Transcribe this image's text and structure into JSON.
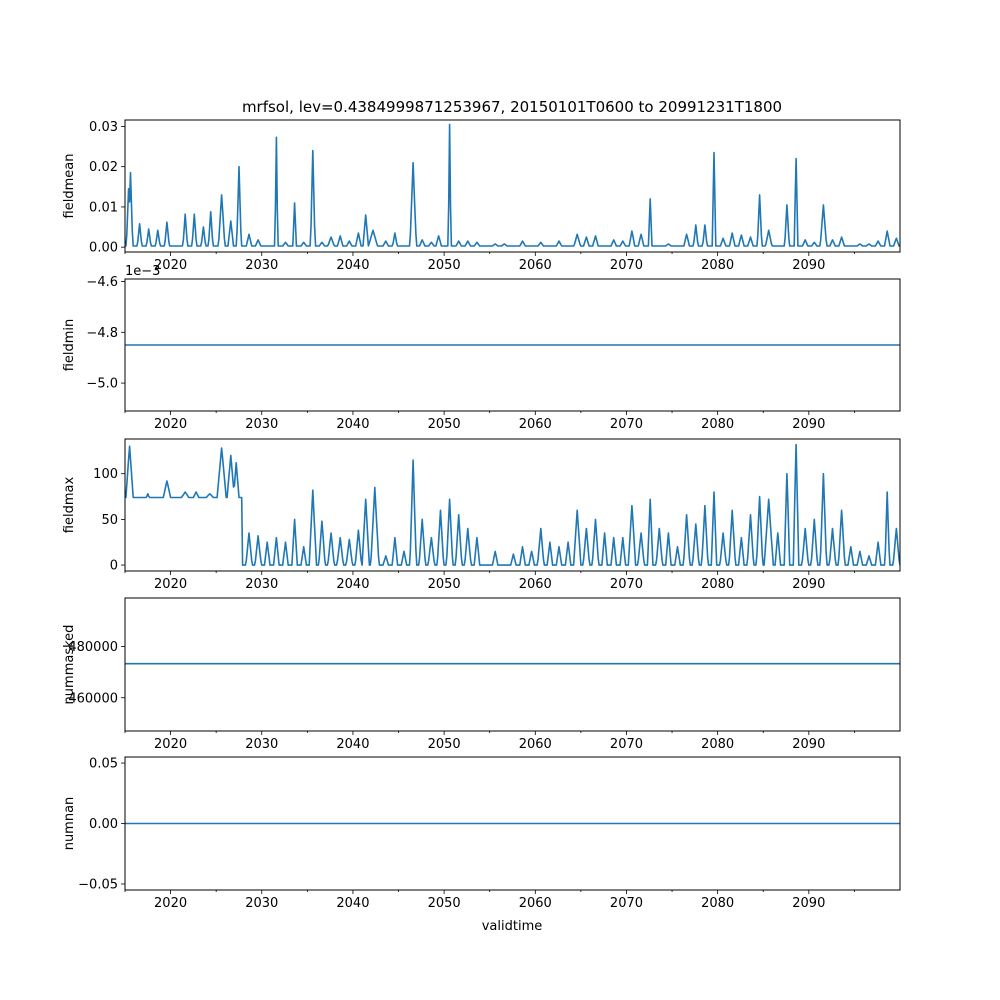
{
  "figure": {
    "title": "mrfsol, lev=0.4384999871253967, 20150101T0600 to 20991231T1800",
    "xlabel": "validtime",
    "line_color": "#1f77b4"
  },
  "chart_data": [
    {
      "type": "line",
      "name": "fieldmean",
      "ylabel": "fieldmean",
      "xlim": [
        2015.0,
        2100.0
      ],
      "ylim": [
        -0.0012,
        0.0316
      ],
      "xticks": [
        2020,
        2030,
        2040,
        2050,
        2060,
        2070,
        2080,
        2090
      ],
      "yticks": [
        0.0,
        0.01,
        0.02,
        0.03
      ],
      "ytick_labels": [
        "0.00",
        "0.01",
        "0.02",
        "0.03"
      ],
      "offset_text": "",
      "baseline": 0.0003,
      "peaks": [
        [
          2015.4,
          0.0145,
          0.25
        ],
        [
          2015.6,
          0.0185,
          0.25
        ],
        [
          2016.6,
          0.0058,
          0.25
        ],
        [
          2017.6,
          0.0045,
          0.25
        ],
        [
          2018.6,
          0.0042,
          0.25
        ],
        [
          2019.6,
          0.0062,
          0.25
        ],
        [
          2021.6,
          0.0082,
          0.25
        ],
        [
          2022.6,
          0.0082,
          0.25
        ],
        [
          2023.6,
          0.005,
          0.25
        ],
        [
          2024.4,
          0.0088,
          0.25
        ],
        [
          2025.6,
          0.013,
          0.35
        ],
        [
          2026.6,
          0.0065,
          0.3
        ],
        [
          2027.5,
          0.02,
          0.25
        ],
        [
          2028.6,
          0.0032,
          0.3
        ],
        [
          2029.6,
          0.0018,
          0.3
        ],
        [
          2031.6,
          0.0273,
          0.15
        ],
        [
          2032.6,
          0.0012,
          0.3
        ],
        [
          2033.6,
          0.011,
          0.2
        ],
        [
          2034.6,
          0.0012,
          0.3
        ],
        [
          2035.6,
          0.024,
          0.25
        ],
        [
          2036.6,
          0.0012,
          0.3
        ],
        [
          2037.6,
          0.0025,
          0.35
        ],
        [
          2038.6,
          0.0028,
          0.3
        ],
        [
          2039.6,
          0.0015,
          0.3
        ],
        [
          2040.6,
          0.0035,
          0.3
        ],
        [
          2041.4,
          0.008,
          0.3
        ],
        [
          2042.2,
          0.0042,
          0.5
        ],
        [
          2043.6,
          0.0015,
          0.3
        ],
        [
          2044.6,
          0.0035,
          0.25
        ],
        [
          2046.6,
          0.021,
          0.35
        ],
        [
          2047.6,
          0.0018,
          0.3
        ],
        [
          2048.6,
          0.0012,
          0.3
        ],
        [
          2049.4,
          0.0028,
          0.3
        ],
        [
          2050.6,
          0.0305,
          0.15
        ],
        [
          2051.6,
          0.0015,
          0.3
        ],
        [
          2052.6,
          0.0015,
          0.3
        ],
        [
          2053.6,
          0.0012,
          0.3
        ],
        [
          2055.6,
          0.0008,
          0.3
        ],
        [
          2056.6,
          0.0008,
          0.3
        ],
        [
          2058.6,
          0.0015,
          0.3
        ],
        [
          2060.6,
          0.0012,
          0.3
        ],
        [
          2062.6,
          0.0015,
          0.3
        ],
        [
          2064.6,
          0.0032,
          0.35
        ],
        [
          2065.6,
          0.0025,
          0.3
        ],
        [
          2066.6,
          0.0028,
          0.3
        ],
        [
          2068.6,
          0.0018,
          0.3
        ],
        [
          2069.6,
          0.0015,
          0.3
        ],
        [
          2070.6,
          0.004,
          0.3
        ],
        [
          2071.6,
          0.0032,
          0.3
        ],
        [
          2072.6,
          0.012,
          0.2
        ],
        [
          2074.6,
          0.0008,
          0.3
        ],
        [
          2076.6,
          0.0032,
          0.3
        ],
        [
          2077.6,
          0.0055,
          0.25
        ],
        [
          2078.6,
          0.0055,
          0.25
        ],
        [
          2079.6,
          0.0235,
          0.2
        ],
        [
          2080.6,
          0.0022,
          0.3
        ],
        [
          2081.6,
          0.0035,
          0.3
        ],
        [
          2082.6,
          0.003,
          0.3
        ],
        [
          2083.6,
          0.0025,
          0.3
        ],
        [
          2084.6,
          0.013,
          0.25
        ],
        [
          2085.6,
          0.0042,
          0.35
        ],
        [
          2087.6,
          0.0105,
          0.25
        ],
        [
          2088.6,
          0.022,
          0.2
        ],
        [
          2089.6,
          0.0018,
          0.3
        ],
        [
          2090.6,
          0.0012,
          0.3
        ],
        [
          2091.6,
          0.0105,
          0.35
        ],
        [
          2092.6,
          0.0018,
          0.3
        ],
        [
          2093.6,
          0.0025,
          0.3
        ],
        [
          2095.6,
          0.0008,
          0.3
        ],
        [
          2096.6,
          0.0008,
          0.3
        ],
        [
          2097.6,
          0.0015,
          0.3
        ],
        [
          2098.6,
          0.004,
          0.3
        ],
        [
          2099.6,
          0.0022,
          0.3
        ]
      ]
    },
    {
      "type": "line",
      "name": "fieldmin",
      "ylabel": "fieldmin",
      "xlim": [
        2015.0,
        2100.0
      ],
      "ylim": [
        -0.00511,
        -0.00459
      ],
      "xticks": [
        2020,
        2030,
        2040,
        2050,
        2060,
        2070,
        2080,
        2090
      ],
      "yticks": [
        -0.0046,
        -0.0048,
        -0.005
      ],
      "ytick_labels": [
        "−4.6",
        "−4.8",
        "−5.0"
      ],
      "offset_text": "1e−3",
      "constant": -0.00485
    },
    {
      "type": "line",
      "name": "fieldmax",
      "ylabel": "fieldmax",
      "xlim": [
        2015.0,
        2100.0
      ],
      "ylim": [
        -6.5,
        138
      ],
      "xticks": [
        2020,
        2030,
        2040,
        2050,
        2060,
        2070,
        2080,
        2090
      ],
      "yticks": [
        0,
        50,
        100
      ],
      "ytick_labels": [
        "0",
        "50",
        "100"
      ],
      "offset_text": "",
      "segments": [
        [
          2015.0,
          2027.9,
          74
        ],
        [
          2027.9,
          2100.0,
          0
        ]
      ],
      "peaks": [
        [
          2015.5,
          130,
          0.4
        ],
        [
          2017.5,
          78,
          0.15
        ],
        [
          2019.6,
          92,
          0.4
        ],
        [
          2021.6,
          80,
          0.4
        ],
        [
          2022.8,
          80,
          0.3
        ],
        [
          2024.3,
          78,
          0.4
        ],
        [
          2025.6,
          128,
          0.5
        ],
        [
          2026.6,
          120,
          0.4
        ],
        [
          2027.2,
          112,
          0.3
        ],
        [
          2028.6,
          35,
          0.35
        ],
        [
          2029.6,
          32,
          0.35
        ],
        [
          2030.6,
          25,
          0.3
        ],
        [
          2031.6,
          30,
          0.3
        ],
        [
          2032.6,
          25,
          0.3
        ],
        [
          2033.6,
          50,
          0.3
        ],
        [
          2034.6,
          20,
          0.3
        ],
        [
          2035.6,
          82,
          0.4
        ],
        [
          2036.6,
          48,
          0.35
        ],
        [
          2037.6,
          35,
          0.35
        ],
        [
          2038.6,
          30,
          0.35
        ],
        [
          2039.6,
          28,
          0.35
        ],
        [
          2040.6,
          38,
          0.35
        ],
        [
          2041.4,
          72,
          0.4
        ],
        [
          2042.4,
          85,
          0.45
        ],
        [
          2043.6,
          10,
          0.3
        ],
        [
          2044.6,
          30,
          0.3
        ],
        [
          2045.6,
          15,
          0.3
        ],
        [
          2046.6,
          115,
          0.35
        ],
        [
          2047.6,
          50,
          0.35
        ],
        [
          2048.6,
          30,
          0.35
        ],
        [
          2049.6,
          60,
          0.35
        ],
        [
          2050.6,
          72,
          0.35
        ],
        [
          2051.6,
          55,
          0.35
        ],
        [
          2052.6,
          40,
          0.35
        ],
        [
          2053.6,
          30,
          0.3
        ],
        [
          2055.6,
          15,
          0.3
        ],
        [
          2057.6,
          12,
          0.3
        ],
        [
          2058.6,
          20,
          0.3
        ],
        [
          2059.6,
          15,
          0.3
        ],
        [
          2060.6,
          40,
          0.35
        ],
        [
          2061.6,
          25,
          0.3
        ],
        [
          2062.6,
          20,
          0.3
        ],
        [
          2063.6,
          25,
          0.3
        ],
        [
          2064.6,
          60,
          0.4
        ],
        [
          2065.6,
          40,
          0.35
        ],
        [
          2066.6,
          50,
          0.35
        ],
        [
          2067.6,
          35,
          0.3
        ],
        [
          2068.6,
          30,
          0.3
        ],
        [
          2069.6,
          30,
          0.3
        ],
        [
          2070.6,
          65,
          0.4
        ],
        [
          2071.6,
          35,
          0.35
        ],
        [
          2072.6,
          72,
          0.3
        ],
        [
          2073.6,
          40,
          0.35
        ],
        [
          2074.6,
          35,
          0.3
        ],
        [
          2075.6,
          20,
          0.3
        ],
        [
          2076.6,
          55,
          0.35
        ],
        [
          2077.6,
          45,
          0.35
        ],
        [
          2078.6,
          65,
          0.35
        ],
        [
          2079.6,
          80,
          0.3
        ],
        [
          2080.6,
          35,
          0.35
        ],
        [
          2081.6,
          60,
          0.35
        ],
        [
          2082.6,
          30,
          0.3
        ],
        [
          2083.6,
          55,
          0.35
        ],
        [
          2084.6,
          75,
          0.35
        ],
        [
          2085.6,
          72,
          0.5
        ],
        [
          2086.6,
          35,
          0.3
        ],
        [
          2087.6,
          100,
          0.3
        ],
        [
          2088.6,
          132,
          0.3
        ],
        [
          2089.6,
          40,
          0.35
        ],
        [
          2090.6,
          50,
          0.35
        ],
        [
          2091.6,
          100,
          0.35
        ],
        [
          2092.6,
          40,
          0.35
        ],
        [
          2093.6,
          60,
          0.35
        ],
        [
          2094.6,
          20,
          0.3
        ],
        [
          2095.6,
          15,
          0.3
        ],
        [
          2096.6,
          10,
          0.3
        ],
        [
          2097.6,
          25,
          0.3
        ],
        [
          2098.6,
          80,
          0.25
        ],
        [
          2099.6,
          40,
          0.35
        ]
      ]
    },
    {
      "type": "line",
      "name": "nummasked",
      "ylabel": "nummasked",
      "xlim": [
        2015.0,
        2100.0
      ],
      "ylim": [
        447000,
        499000
      ],
      "xticks": [
        2020,
        2030,
        2040,
        2050,
        2060,
        2070,
        2080,
        2090
      ],
      "yticks": [
        460000,
        480000
      ],
      "ytick_labels": [
        "460000",
        "480000"
      ],
      "offset_text": "",
      "constant": 473300
    },
    {
      "type": "line",
      "name": "numnan",
      "ylabel": "numnan",
      "xlabel": "validtime",
      "xlim": [
        2015.0,
        2100.0
      ],
      "ylim": [
        -0.055,
        0.055
      ],
      "xticks": [
        2020,
        2030,
        2040,
        2050,
        2060,
        2070,
        2080,
        2090
      ],
      "yticks": [
        -0.05,
        0.0,
        0.05
      ],
      "ytick_labels": [
        "−0.05",
        "0.00",
        "0.05"
      ],
      "offset_text": "",
      "constant": 0.0
    }
  ]
}
